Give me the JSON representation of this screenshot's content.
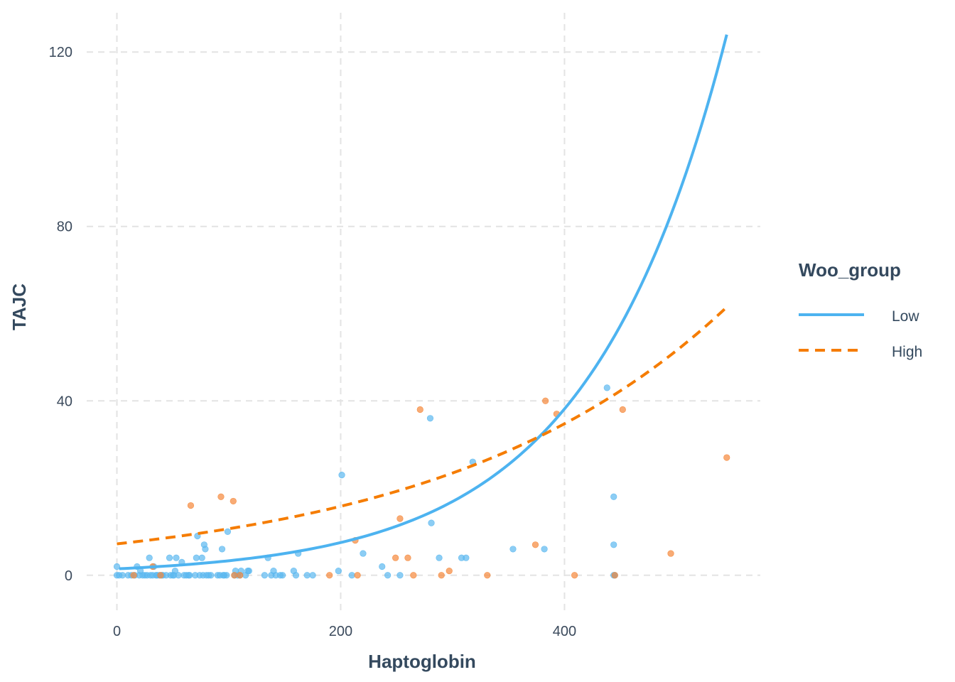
{
  "chart_data": {
    "type": "scatter",
    "title": "",
    "xlabel": "Haptoglobin",
    "ylabel": "TAJC",
    "xlim": [
      -27,
      575
    ],
    "ylim": [
      -9,
      129
    ],
    "x_ticks": [
      0,
      200,
      400
    ],
    "y_ticks": [
      0,
      40,
      80,
      120
    ],
    "x_tick_labels": [
      "0",
      "200",
      "400"
    ],
    "y_tick_labels": [
      "0",
      "40",
      "80",
      "120"
    ],
    "grid": true,
    "legend": {
      "title": "Woo_group",
      "position": "right",
      "entries": [
        {
          "label": "Low",
          "color": "#4db3f0",
          "line": "solid"
        },
        {
          "label": "High",
          "color": "#f57c00",
          "line": "dashed"
        }
      ]
    },
    "colors": {
      "low_points": "#5bb8f0",
      "high_points": "#f5883a",
      "grid": "#e3e3e3",
      "text": "#34495e"
    },
    "series": [
      {
        "name": "Low",
        "color": "#4db3f0",
        "points": [
          [
            0,
            0
          ],
          [
            0,
            2
          ],
          [
            2,
            0
          ],
          [
            5,
            0
          ],
          [
            10,
            0
          ],
          [
            13,
            0
          ],
          [
            16,
            0
          ],
          [
            18,
            2
          ],
          [
            20,
            0
          ],
          [
            21,
            1
          ],
          [
            23,
            0
          ],
          [
            25,
            0
          ],
          [
            27,
            0
          ],
          [
            29,
            4
          ],
          [
            30,
            0
          ],
          [
            32,
            0
          ],
          [
            33,
            2
          ],
          [
            35,
            0
          ],
          [
            36,
            0
          ],
          [
            38,
            0
          ],
          [
            40,
            0
          ],
          [
            41,
            0
          ],
          [
            44,
            0
          ],
          [
            47,
            4
          ],
          [
            48,
            0
          ],
          [
            50,
            0
          ],
          [
            51,
            0
          ],
          [
            52,
            1
          ],
          [
            53,
            4
          ],
          [
            55,
            0
          ],
          [
            58,
            3
          ],
          [
            60,
            0
          ],
          [
            62,
            0
          ],
          [
            64,
            0
          ],
          [
            65,
            0
          ],
          [
            70,
            0
          ],
          [
            71,
            4
          ],
          [
            72,
            9
          ],
          [
            74,
            0
          ],
          [
            76,
            4
          ],
          [
            77,
            0
          ],
          [
            78,
            7
          ],
          [
            79,
            6
          ],
          [
            80,
            0
          ],
          [
            82,
            0
          ],
          [
            84,
            0
          ],
          [
            90,
            0
          ],
          [
            92,
            0
          ],
          [
            94,
            6
          ],
          [
            95,
            0
          ],
          [
            96,
            0
          ],
          [
            98,
            0
          ],
          [
            99,
            10
          ],
          [
            105,
            0
          ],
          [
            106,
            1
          ],
          [
            108,
            0
          ],
          [
            110,
            0
          ],
          [
            111,
            1
          ],
          [
            115,
            0
          ],
          [
            117,
            1
          ],
          [
            118,
            1
          ],
          [
            132,
            0
          ],
          [
            135,
            4
          ],
          [
            138,
            0
          ],
          [
            140,
            1
          ],
          [
            142,
            0
          ],
          [
            146,
            0
          ],
          [
            148,
            0
          ],
          [
            158,
            1
          ],
          [
            160,
            0
          ],
          [
            162,
            5
          ],
          [
            170,
            0
          ],
          [
            175,
            0
          ],
          [
            198,
            1
          ],
          [
            201,
            23
          ],
          [
            210,
            0
          ],
          [
            220,
            5
          ],
          [
            237,
            2
          ],
          [
            242,
            0
          ],
          [
            253,
            0
          ],
          [
            280,
            36
          ],
          [
            281,
            12
          ],
          [
            288,
            4
          ],
          [
            308,
            4
          ],
          [
            312,
            4
          ],
          [
            318,
            26
          ],
          [
            354,
            6
          ],
          [
            382,
            6
          ],
          [
            438,
            43
          ],
          [
            444,
            18
          ],
          [
            444,
            7
          ],
          [
            444,
            0
          ],
          [
            445,
            0
          ]
        ],
        "fit": {
          "type": "exponential",
          "x_start": 2,
          "x_end": 545,
          "y_start": 1.5,
          "y_end": 124
        }
      },
      {
        "name": "High",
        "color": "#f57c00",
        "points": [
          [
            15,
            0
          ],
          [
            32,
            2
          ],
          [
            39,
            0
          ],
          [
            66,
            16
          ],
          [
            93,
            18
          ],
          [
            104,
            17
          ],
          [
            105,
            0
          ],
          [
            110,
            0
          ],
          [
            190,
            0
          ],
          [
            213,
            8
          ],
          [
            215,
            0
          ],
          [
            249,
            4
          ],
          [
            253,
            13
          ],
          [
            260,
            4
          ],
          [
            265,
            0
          ],
          [
            271,
            38
          ],
          [
            290,
            0
          ],
          [
            297,
            1
          ],
          [
            331,
            0
          ],
          [
            374,
            7
          ],
          [
            383,
            40
          ],
          [
            393,
            37
          ],
          [
            409,
            0
          ],
          [
            445,
            0
          ],
          [
            452,
            38
          ],
          [
            495,
            5
          ],
          [
            545,
            27
          ]
        ],
        "fit": {
          "type": "exponential",
          "x_start": 0,
          "x_end": 545,
          "y_start": 7.2,
          "y_end": 61.5
        }
      }
    ]
  }
}
